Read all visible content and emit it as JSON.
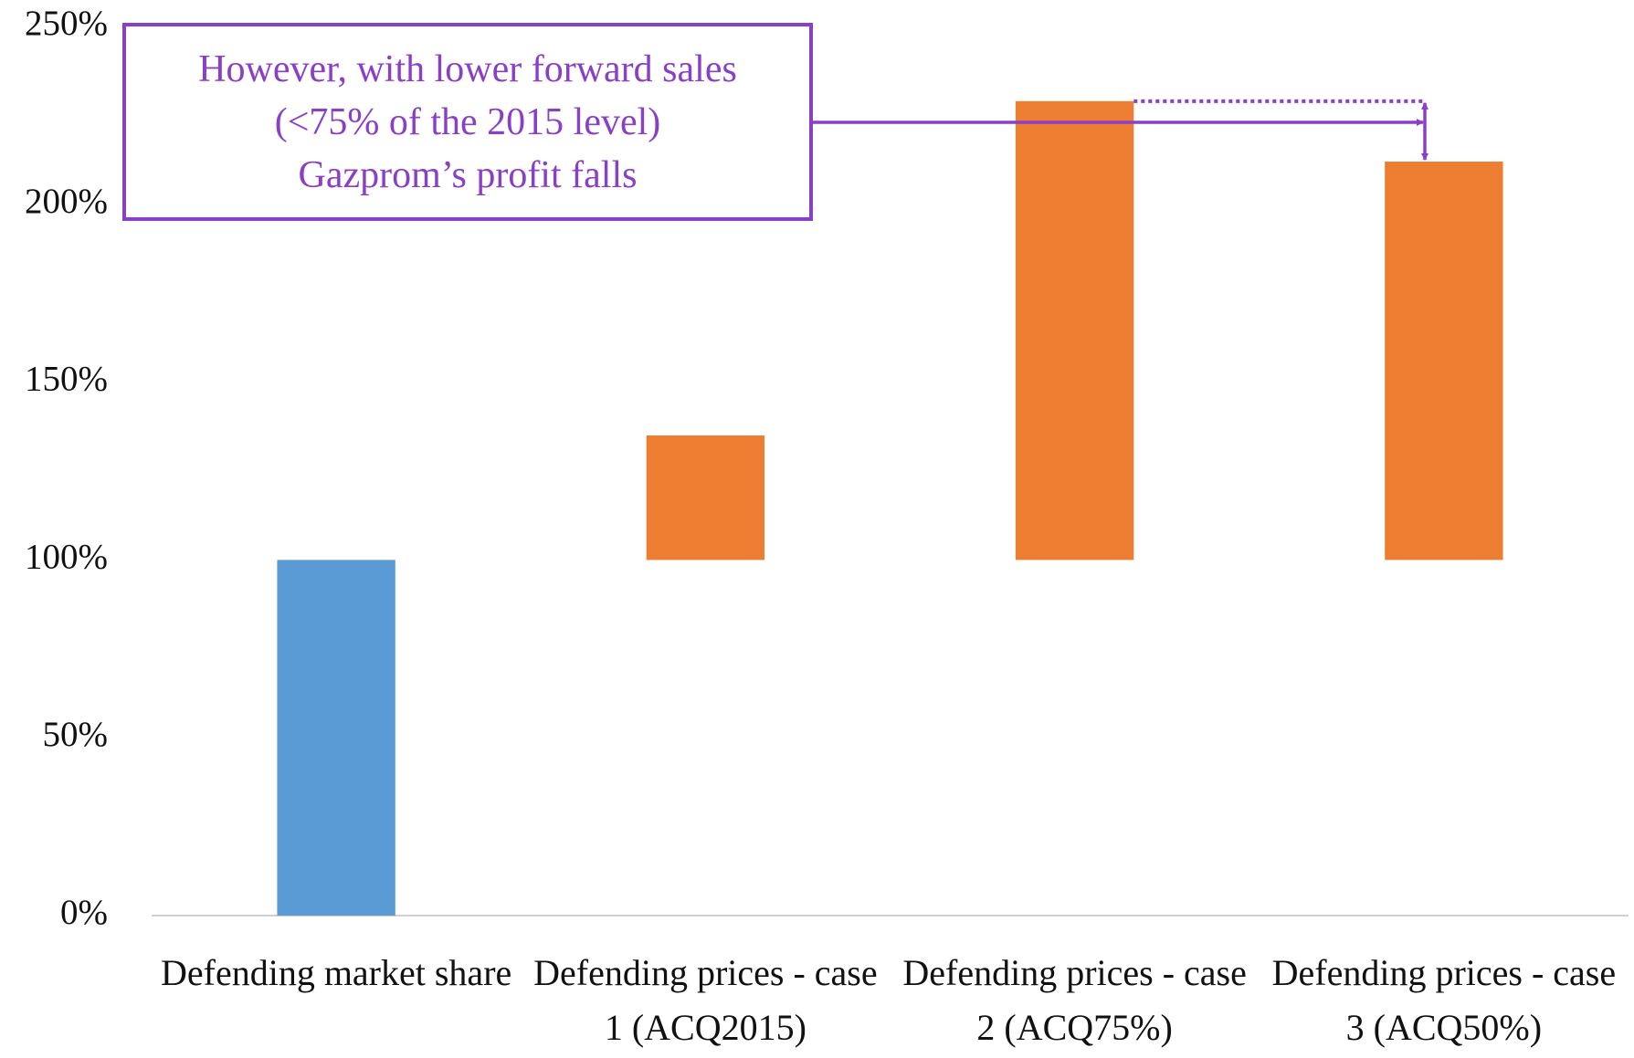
{
  "chart_data": {
    "type": "waterfall",
    "categories": [
      "Defending market share",
      "Defending prices - case 1 (ACQ2015)",
      "Defending prices - case 2 (ACQ75%)",
      "Defending prices - case 3 (ACQ50%)"
    ],
    "values": [
      100,
      135,
      229,
      212
    ],
    "colors": [
      "#5b9bd5",
      "#ed7d31",
      "#ed7d31",
      "#ed7d31"
    ],
    "annotation": [
      "However, with lower forward sales",
      "(<75% of the 2015 level)",
      "Gazprom’s profit falls"
    ],
    "annotation_color": "#8a3fc7",
    "ylim": [
      0,
      250
    ],
    "yticks": [
      {
        "value": 0,
        "label": "0%"
      },
      {
        "value": 50,
        "label": "50%"
      },
      {
        "value": 100,
        "label": "100%"
      },
      {
        "value": 150,
        "label": "150%"
      },
      {
        "value": 200,
        "label": "200%"
      },
      {
        "value": 250,
        "label": "250%"
      }
    ],
    "grid": false
  }
}
